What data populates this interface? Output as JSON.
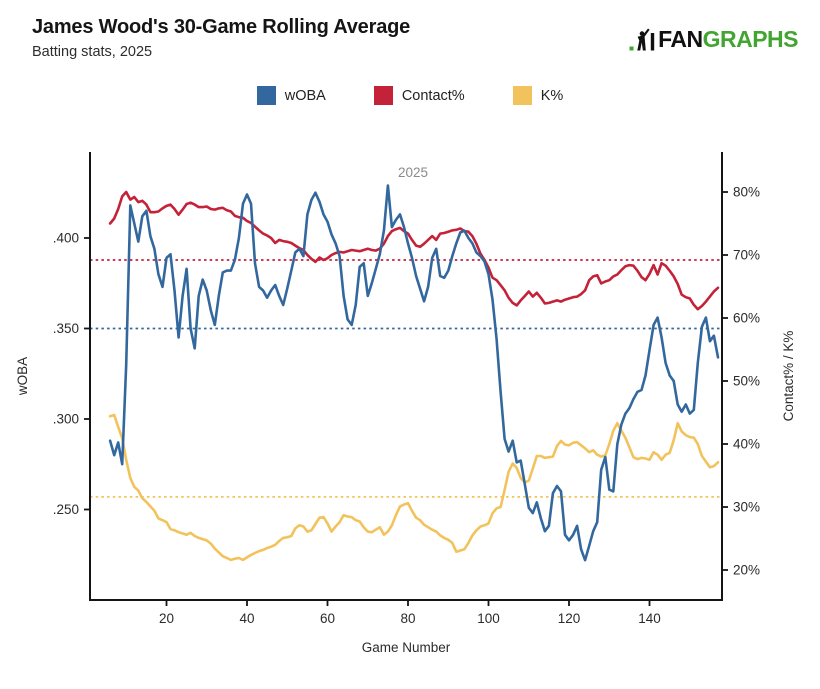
{
  "header": {
    "title": "James Wood's 30-Game Rolling Average",
    "subtitle": "Batting stats, 2025"
  },
  "logo": {
    "fan": "FAN",
    "graphs": "GRAPHS",
    "green": "#43A531",
    "black": "#111111"
  },
  "legend": [
    {
      "label": "wOBA",
      "color": "#33689E"
    },
    {
      "label": "Contact%",
      "color": "#C42238"
    },
    {
      "label": "K%",
      "color": "#F2C35C"
    }
  ],
  "chart_data": {
    "type": "line",
    "annotation": "2025",
    "xlabel": "Game Number",
    "ylabel_left": "wOBA",
    "ylabel_right": "Contact% / K%",
    "x_axis": {
      "min": 1,
      "max": 158,
      "ticks": [
        20,
        40,
        60,
        80,
        100,
        120,
        140
      ]
    },
    "left_axis": {
      "min": 0.2,
      "max": 0.4475,
      "ticks": [
        0.25,
        0.3,
        0.35,
        0.4
      ],
      "tick_labels": [
        ".250",
        ".300",
        ".350",
        ".400"
      ]
    },
    "right_axis": {
      "min": 15.24,
      "max": 86.35,
      "ticks": [
        20,
        30,
        40,
        50,
        60,
        70,
        80
      ],
      "tick_labels": [
        "20%",
        "30%",
        "40%",
        "50%",
        "60%",
        "70%",
        "80%"
      ]
    },
    "grid": false,
    "legend_position": "top",
    "series": [
      {
        "name": "wOBA",
        "axis": "left",
        "color": "#33689E",
        "season_average": 0.35,
        "games_start": 6,
        "values": [
          0.288,
          0.28,
          0.287,
          0.275,
          0.33,
          0.418,
          0.408,
          0.398,
          0.412,
          0.415,
          0.401,
          0.394,
          0.38,
          0.373,
          0.389,
          0.391,
          0.371,
          0.345,
          0.368,
          0.383,
          0.35,
          0.339,
          0.368,
          0.377,
          0.371,
          0.36,
          0.352,
          0.368,
          0.381,
          0.382,
          0.382,
          0.388,
          0.4,
          0.419,
          0.424,
          0.419,
          0.386,
          0.373,
          0.371,
          0.367,
          0.371,
          0.374,
          0.368,
          0.363,
          0.372,
          0.382,
          0.392,
          0.394,
          0.39,
          0.413,
          0.421,
          0.425,
          0.42,
          0.413,
          0.409,
          0.402,
          0.397,
          0.39,
          0.368,
          0.355,
          0.352,
          0.363,
          0.384,
          0.386,
          0.368,
          0.375,
          0.383,
          0.391,
          0.404,
          0.429,
          0.406,
          0.41,
          0.413,
          0.406,
          0.397,
          0.389,
          0.379,
          0.372,
          0.365,
          0.373,
          0.389,
          0.394,
          0.379,
          0.378,
          0.382,
          0.39,
          0.397,
          0.403,
          0.404,
          0.4,
          0.397,
          0.392,
          0.39,
          0.387,
          0.38,
          0.366,
          0.344,
          0.315,
          0.289,
          0.282,
          0.288,
          0.276,
          0.277,
          0.264,
          0.251,
          0.248,
          0.254,
          0.245,
          0.238,
          0.241,
          0.259,
          0.263,
          0.26,
          0.236,
          0.233,
          0.236,
          0.241,
          0.228,
          0.222,
          0.23,
          0.238,
          0.243,
          0.272,
          0.279,
          0.261,
          0.26,
          0.286,
          0.297,
          0.303,
          0.306,
          0.311,
          0.315,
          0.316,
          0.324,
          0.338,
          0.352,
          0.356,
          0.345,
          0.331,
          0.324,
          0.321,
          0.308,
          0.304,
          0.308,
          0.303,
          0.305,
          0.331,
          0.351,
          0.356,
          0.343,
          0.346,
          0.334
        ]
      },
      {
        "name": "Contact%",
        "axis": "right",
        "color": "#C42238",
        "season_average": 69.2,
        "games_start": 6,
        "values": [
          75.0,
          75.8,
          77.3,
          79.3,
          80.0,
          78.8,
          79.2,
          78.4,
          78.6,
          78.0,
          76.8,
          76.8,
          76.9,
          77.4,
          77.8,
          78.0,
          77.3,
          76.4,
          77.2,
          78.1,
          78.3,
          78.0,
          77.6,
          77.6,
          77.7,
          77.3,
          77.2,
          77.4,
          77.5,
          77.1,
          76.9,
          76.2,
          76.0,
          75.9,
          75.4,
          75.1,
          74.5,
          73.9,
          73.4,
          73.1,
          72.7,
          71.9,
          72.4,
          72.2,
          72.1,
          71.9,
          71.5,
          71.1,
          70.8,
          70.0,
          69.4,
          68.9,
          69.6,
          69.2,
          69.5,
          70.0,
          70.3,
          70.5,
          70.4,
          70.6,
          70.8,
          70.7,
          70.6,
          70.8,
          71.0,
          70.8,
          70.7,
          71.0,
          71.8,
          73.0,
          73.8,
          74.1,
          74.3,
          73.8,
          73.4,
          72.4,
          71.5,
          71.3,
          71.8,
          72.4,
          73.0,
          72.4,
          73.4,
          73.5,
          73.7,
          73.9,
          74.0,
          74.2,
          73.8,
          73.7,
          73.0,
          71.8,
          70.2,
          69.2,
          68.0,
          66.4,
          66.0,
          65.2,
          64.4,
          63.2,
          62.4,
          62.0,
          62.8,
          63.5,
          64.2,
          63.4,
          64.0,
          63.2,
          62.3,
          62.4,
          62.6,
          62.8,
          62.6,
          62.9,
          63.1,
          63.3,
          63.4,
          63.8,
          64.4,
          66.0,
          66.6,
          66.8,
          65.5,
          65.8,
          66.0,
          66.6,
          66.9,
          67.6,
          68.2,
          68.4,
          68.3,
          67.5,
          66.5,
          66.0,
          67.0,
          68.4,
          66.9,
          68.7,
          68.3,
          67.5,
          66.6,
          65.4,
          63.7,
          63.3,
          63.1,
          62.1,
          61.4,
          61.9,
          62.6,
          63.4,
          64.2,
          64.8
        ]
      },
      {
        "name": "K%",
        "axis": "right",
        "color": "#F2C35C",
        "season_average": 31.6,
        "games_start": 6,
        "values": [
          44.4,
          44.6,
          42.7,
          40.9,
          37.5,
          34.6,
          33.2,
          32.6,
          31.4,
          30.8,
          30.1,
          29.4,
          28.2,
          27.9,
          27.6,
          26.5,
          26.3,
          26.0,
          25.8,
          25.6,
          25.9,
          25.4,
          25.1,
          24.9,
          24.7,
          24.2,
          23.4,
          22.8,
          22.2,
          21.9,
          21.6,
          21.8,
          21.9,
          21.6,
          22.0,
          22.4,
          22.7,
          23.0,
          23.2,
          23.5,
          23.7,
          24.0,
          24.6,
          25.1,
          25.2,
          25.4,
          26.6,
          27.1,
          26.9,
          26.1,
          26.3,
          27.3,
          28.3,
          28.4,
          27.4,
          26.1,
          26.9,
          27.6,
          28.7,
          28.5,
          28.4,
          27.9,
          27.7,
          26.8,
          26.1,
          26.0,
          26.4,
          26.8,
          25.6,
          26.1,
          27.1,
          28.7,
          30.1,
          30.4,
          30.6,
          29.4,
          28.3,
          27.9,
          27.2,
          26.8,
          26.4,
          26.1,
          25.5,
          25.1,
          24.8,
          24.3,
          22.9,
          23.1,
          23.3,
          24.3,
          25.5,
          26.3,
          26.9,
          27.1,
          27.4,
          29.0,
          29.8,
          30.0,
          32.7,
          35.6,
          36.9,
          36.2,
          34.6,
          33.9,
          34.2,
          36.1,
          38.1,
          38.1,
          37.8,
          37.9,
          38.0,
          39.7,
          40.5,
          39.9,
          39.8,
          40.2,
          40.3,
          39.8,
          39.3,
          38.7,
          39.0,
          38.3,
          38.0,
          38.2,
          40.0,
          42.1,
          43.3,
          42.1,
          41.0,
          39.5,
          37.9,
          37.6,
          37.8,
          37.7,
          37.5,
          38.7,
          38.3,
          37.5,
          38.3,
          38.6,
          40.6,
          43.3,
          42.0,
          41.4,
          41.1,
          41.0,
          40.0,
          38.1,
          37.2,
          36.3,
          36.5,
          37.1
        ]
      }
    ]
  }
}
